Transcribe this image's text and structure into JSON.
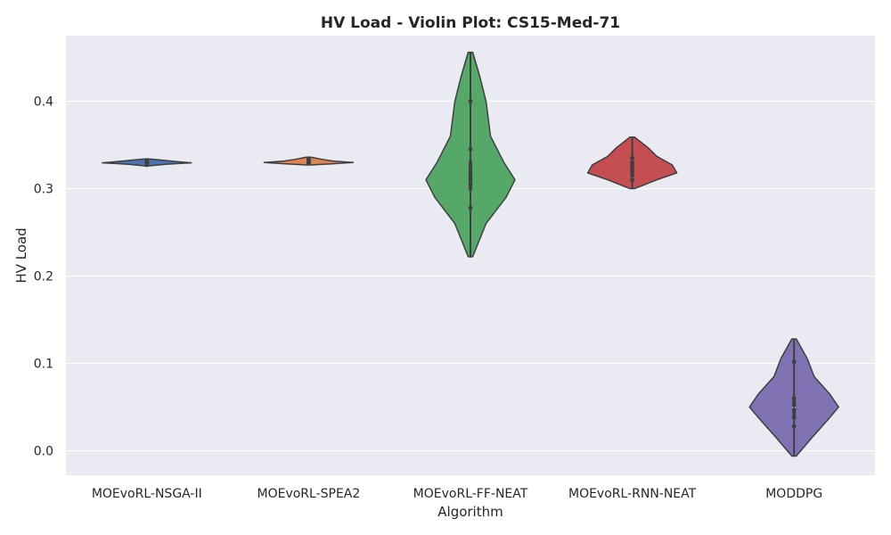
{
  "chart_data": {
    "type": "violin",
    "title": "HV Load - Violin Plot: CS15-Med-71",
    "xlabel": "Algorithm",
    "ylabel": "HV Load",
    "ylim": [
      -0.028,
      0.475
    ],
    "yticks": [
      "0.0",
      "0.1",
      "0.2",
      "0.3",
      "0.4"
    ],
    "grid": true,
    "background": "#eaeaf2",
    "categories": [
      "MOEvoRL-NSGA-II",
      "MOEvoRL-SPEA2",
      "MOEvoRL-FF-NEAT",
      "MOEvoRL-RNN-NEAT",
      "MODDPG"
    ],
    "series": [
      {
        "color": "#4c72b0",
        "range": [
          0.326,
          0.334
        ],
        "points": [
          0.327,
          0.328,
          0.329,
          0.33,
          0.33,
          0.331,
          0.332
        ],
        "profile": [
          [
            0.326,
            0.05
          ],
          [
            0.328,
            0.45
          ],
          [
            0.3295,
            1.0
          ],
          [
            0.331,
            0.65
          ],
          [
            0.3325,
            0.35
          ],
          [
            0.334,
            0.05
          ]
        ]
      },
      {
        "color": "#dd8452",
        "range": [
          0.327,
          0.336
        ],
        "points": [
          0.329,
          0.33,
          0.331,
          0.332,
          0.333,
          0.334
        ],
        "profile": [
          [
            0.327,
            0.05
          ],
          [
            0.3285,
            0.55
          ],
          [
            0.3298,
            1.0
          ],
          [
            0.3315,
            0.55
          ],
          [
            0.3335,
            0.3
          ],
          [
            0.336,
            0.05
          ]
        ]
      },
      {
        "color": "#55a868",
        "range": [
          0.222,
          0.456
        ],
        "points": [
          0.278,
          0.3,
          0.305,
          0.31,
          0.315,
          0.345,
          0.4
        ],
        "profile": [
          [
            0.222,
            0.05
          ],
          [
            0.26,
            0.35
          ],
          [
            0.29,
            0.8
          ],
          [
            0.31,
            1.0
          ],
          [
            0.33,
            0.75
          ],
          [
            0.36,
            0.45
          ],
          [
            0.4,
            0.35
          ],
          [
            0.43,
            0.2
          ],
          [
            0.456,
            0.05
          ]
        ]
      },
      {
        "color": "#c44e52",
        "range": [
          0.3,
          0.359
        ],
        "points": [
          0.31,
          0.315,
          0.32,
          0.322,
          0.325,
          0.33,
          0.335
        ],
        "profile": [
          [
            0.3,
            0.05
          ],
          [
            0.31,
            0.55
          ],
          [
            0.318,
            1.0
          ],
          [
            0.327,
            0.9
          ],
          [
            0.337,
            0.55
          ],
          [
            0.347,
            0.35
          ],
          [
            0.359,
            0.05
          ]
        ]
      },
      {
        "color": "#8172b3",
        "range": [
          -0.006,
          0.128
        ],
        "points": [
          0.028,
          0.038,
          0.047,
          0.052,
          0.06,
          0.102
        ],
        "profile": [
          [
            -0.006,
            0.05
          ],
          [
            0.015,
            0.4
          ],
          [
            0.035,
            0.75
          ],
          [
            0.05,
            1.0
          ],
          [
            0.065,
            0.8
          ],
          [
            0.085,
            0.45
          ],
          [
            0.105,
            0.3
          ],
          [
            0.128,
            0.05
          ]
        ]
      }
    ]
  }
}
